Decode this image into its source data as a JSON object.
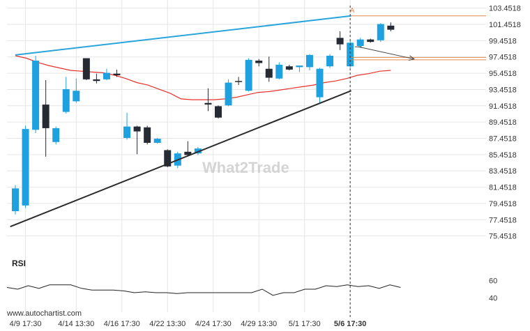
{
  "watermark": "What2Trade",
  "footer_url": "www.autochartist.com",
  "rsi_title": "RSI",
  "rsi_ticks": [
    "60",
    "40"
  ],
  "pattern_marker": "A",
  "colors": {
    "bull": "#1fa1df",
    "bear": "#262a33",
    "ma": "#e8302b",
    "upper_line": "#2aa4dc",
    "lower_line": "#2b2b2b",
    "forecast": "#e08a4e",
    "rsi": "#222222",
    "grid": "#e6e6e6"
  },
  "chart_data": {
    "type": "candlestick",
    "title": "",
    "ylim": [
      73.4518,
      104.4518
    ],
    "y_ticks": [
      "103.4518",
      "101.4518",
      "99.4518",
      "97.4518",
      "95.4518",
      "93.4518",
      "91.4518",
      "89.4518",
      "87.4518",
      "85.4518",
      "83.4518",
      "81.4518",
      "79.4518",
      "77.4518",
      "75.4518"
    ],
    "x_ticks": [
      {
        "label": "4/9 17:30",
        "index": 1
      },
      {
        "label": "4/14 13:30",
        "index": 6
      },
      {
        "label": "4/16 17:30",
        "index": 10.5
      },
      {
        "label": "4/22 13:30",
        "index": 15
      },
      {
        "label": "4/24 17:30",
        "index": 19.5
      },
      {
        "label": "4/29 13:30",
        "index": 24
      },
      {
        "label": "5/1 17:30",
        "index": 28.5
      },
      {
        "label": "5/6 17:30",
        "index": 33
      }
    ],
    "candles": [
      {
        "o": 78.5,
        "h": 81.7,
        "l": 78.1,
        "c": 81.3
      },
      {
        "o": 79.2,
        "h": 89.0,
        "l": 78.9,
        "c": 88.6
      },
      {
        "o": 88.5,
        "h": 97.6,
        "l": 88.1,
        "c": 97.0
      },
      {
        "o": 91.6,
        "h": 94.6,
        "l": 85.2,
        "c": 88.7
      },
      {
        "o": 87.0,
        "h": 88.9,
        "l": 86.7,
        "c": 88.7
      },
      {
        "o": 90.7,
        "h": 95.0,
        "l": 90.5,
        "c": 93.5
      },
      {
        "o": 92.0,
        "h": 94.8,
        "l": 91.8,
        "c": 93.3
      },
      {
        "o": 97.3,
        "h": 97.3,
        "l": 94.6,
        "c": 94.7
      },
      {
        "o": 94.7,
        "h": 95.4,
        "l": 94.2,
        "c": 94.5
      },
      {
        "o": 94.7,
        "h": 96.0,
        "l": 94.6,
        "c": 95.5
      },
      {
        "o": 95.4,
        "h": 95.9,
        "l": 95.0,
        "c": 95.2
      },
      {
        "o": 87.5,
        "h": 90.6,
        "l": 87.3,
        "c": 88.9
      },
      {
        "o": 88.9,
        "h": 89.0,
        "l": 85.5,
        "c": 88.3
      },
      {
        "o": 88.8,
        "h": 89.0,
        "l": 86.7,
        "c": 86.9
      },
      {
        "o": 86.9,
        "h": 87.5,
        "l": 86.8,
        "c": 87.4
      },
      {
        "o": 86.0,
        "h": 86.1,
        "l": 83.9,
        "c": 84.0
      },
      {
        "o": 84.1,
        "h": 85.8,
        "l": 83.8,
        "c": 85.6
      },
      {
        "o": 85.8,
        "h": 87.1,
        "l": 85.3,
        "c": 85.4
      },
      {
        "o": 85.6,
        "h": 86.4,
        "l": 85.4,
        "c": 86.2
      },
      {
        "o": 91.8,
        "h": 93.6,
        "l": 90.8,
        "c": 91.6
      },
      {
        "o": 91.4,
        "h": 91.5,
        "l": 89.9,
        "c": 90.0
      },
      {
        "o": 91.5,
        "h": 94.7,
        "l": 91.4,
        "c": 94.3
      },
      {
        "o": 94.5,
        "h": 95.0,
        "l": 94.0,
        "c": 94.4
      },
      {
        "o": 93.3,
        "h": 97.3,
        "l": 93.2,
        "c": 97.1
      },
      {
        "o": 97.0,
        "h": 97.2,
        "l": 96.3,
        "c": 96.7
      },
      {
        "o": 96.0,
        "h": 97.5,
        "l": 94.4,
        "c": 94.9
      },
      {
        "o": 94.8,
        "h": 96.8,
        "l": 94.7,
        "c": 96.5
      },
      {
        "o": 96.3,
        "h": 96.5,
        "l": 95.8,
        "c": 95.9
      },
      {
        "o": 96.2,
        "h": 96.4,
        "l": 95.6,
        "c": 96.4
      },
      {
        "o": 96.2,
        "h": 97.8,
        "l": 95.8,
        "c": 97.7
      },
      {
        "o": 92.5,
        "h": 96.1,
        "l": 91.8,
        "c": 96.0
      },
      {
        "o": 96.3,
        "h": 97.8,
        "l": 96.1,
        "c": 97.6
      },
      {
        "o": 99.8,
        "h": 100.6,
        "l": 98.3,
        "c": 99.0
      },
      {
        "o": 96.3,
        "h": 99.4,
        "l": 96.1,
        "c": 99.2
      },
      {
        "o": 98.8,
        "h": 99.8,
        "l": 98.6,
        "c": 99.6
      },
      {
        "o": 99.6,
        "h": 99.7,
        "l": 99.2,
        "c": 99.3
      },
      {
        "o": 99.5,
        "h": 101.6,
        "l": 99.3,
        "c": 101.5
      },
      {
        "o": 101.3,
        "h": 101.7,
        "l": 100.6,
        "c": 100.8
      }
    ],
    "moving_average": [
      97.6,
      97.3,
      96.8,
      96.4,
      96.1,
      95.8,
      95.7,
      95.6,
      95.5,
      95.2,
      94.8,
      94.3,
      94.0,
      93.5,
      93.0,
      92.3,
      92.2,
      92.2,
      92.2,
      92.3,
      92.5,
      92.8,
      93.1,
      93.2,
      93.4,
      93.6,
      93.8,
      94.0,
      94.3,
      94.5,
      94.8,
      95.2,
      95.4,
      95.7,
      95.8
    ],
    "upper_trendline": {
      "x": [
        0,
        33.1
      ],
      "y": [
        97.7,
        102.5
      ]
    },
    "lower_trendline": {
      "x": [
        -0.5,
        33.1
      ],
      "y": [
        76.6,
        93.3
      ]
    },
    "forecast_line": {
      "x": [
        33.8,
        39.3
      ],
      "y": [
        98.7,
        97.2
      ]
    },
    "target_levels": [
      102.5,
      97.4,
      97.1
    ],
    "current_price": 98.7,
    "rsi": {
      "ylim": [
        30,
        70
      ],
      "values": [
        52,
        50,
        54,
        51,
        55,
        55,
        55,
        51,
        49,
        49,
        49,
        48,
        46,
        47,
        46,
        46,
        45,
        46,
        46,
        46,
        46,
        46,
        46,
        46,
        50,
        43,
        46,
        46,
        50,
        50,
        54,
        53,
        55,
        53,
        54,
        51,
        55,
        52
      ]
    }
  }
}
